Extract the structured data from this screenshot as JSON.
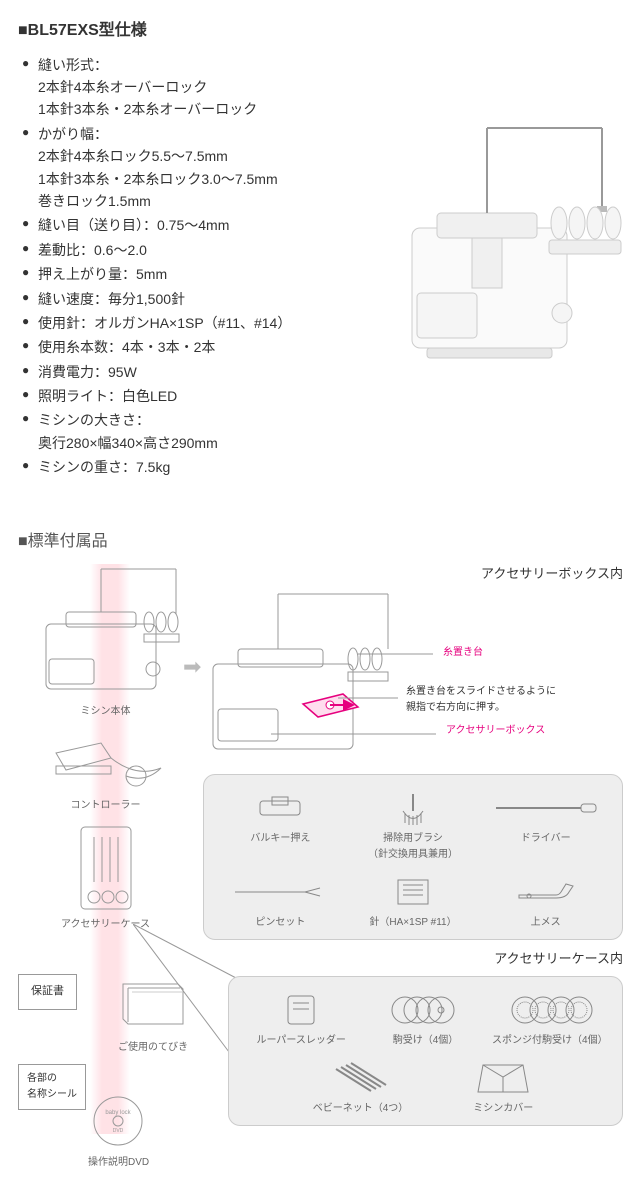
{
  "spec": {
    "title": "■BL57EXS型仕様",
    "items": [
      {
        "label": "縫い形式：",
        "sub": [
          "2本針4本糸オーバーロック",
          "1本針3本糸・2本糸オーバーロック"
        ]
      },
      {
        "label": "かがり幅：",
        "sub": [
          "2本針4本糸ロック5.5～7.5mm",
          "1本針3本糸・2本糸ロック3.0～7.5mm",
          "巻きロック1.5mm"
        ]
      },
      {
        "label": "縫い目（送り目）：0.75～4mm"
      },
      {
        "label": "差動比：0.6～2.0"
      },
      {
        "label": "押え上がり量：5mm"
      },
      {
        "label": "縫い速度：毎分1,500針"
      },
      {
        "label": "使用針：オルガンHA×1SP（#11、#14）"
      },
      {
        "label": "使用糸本数：4本・3本・2本"
      },
      {
        "label": "消費電力：95W"
      },
      {
        "label": "照明ライト：白色LED"
      },
      {
        "label": "ミシンの大きさ：",
        "sub": [
          "奥行280×幅340×高さ290mm"
        ]
      },
      {
        "label": "ミシンの重さ：7.5kg"
      }
    ]
  },
  "accessories": {
    "title": "■標準付属品",
    "box_title": "アクセサリーボックス内",
    "case_title": "アクセサリーケース内",
    "left_items": {
      "machine": "ミシン本体",
      "controller": "コントローラー",
      "acc_case": "アクセサリーケース",
      "warranty": "保証書",
      "label_seal": "各部の\n名称シール",
      "manual": "ご使用のてびき",
      "dvd": "操作説明DVD"
    },
    "callouts": {
      "thread_stand": "糸置き台",
      "instruction": "糸置き台をスライドさせるように\n親指で右方向に押す。",
      "acc_box": "アクセサリーボックス"
    },
    "box_items": {
      "r1c1": "バルキー押え",
      "r1c2": "掃除用ブラシ\n（針交換用具兼用）",
      "r1c3": "ドライバー",
      "r2c1": "ピンセット",
      "r2c2": "針（HA×1SP #11）",
      "r2c3": "上メス"
    },
    "case_items": {
      "r1c1": "ルーパースレッダー",
      "r1c2": "駒受け（4個）",
      "r1c3": "スポンジ付駒受け（4個）",
      "r2c1": "ベビーネット（4つ）",
      "r2c2": "ミシンカバー"
    }
  },
  "colors": {
    "pink": "#e6007e",
    "text": "#333333",
    "gray_bg": "#eeeeee"
  }
}
